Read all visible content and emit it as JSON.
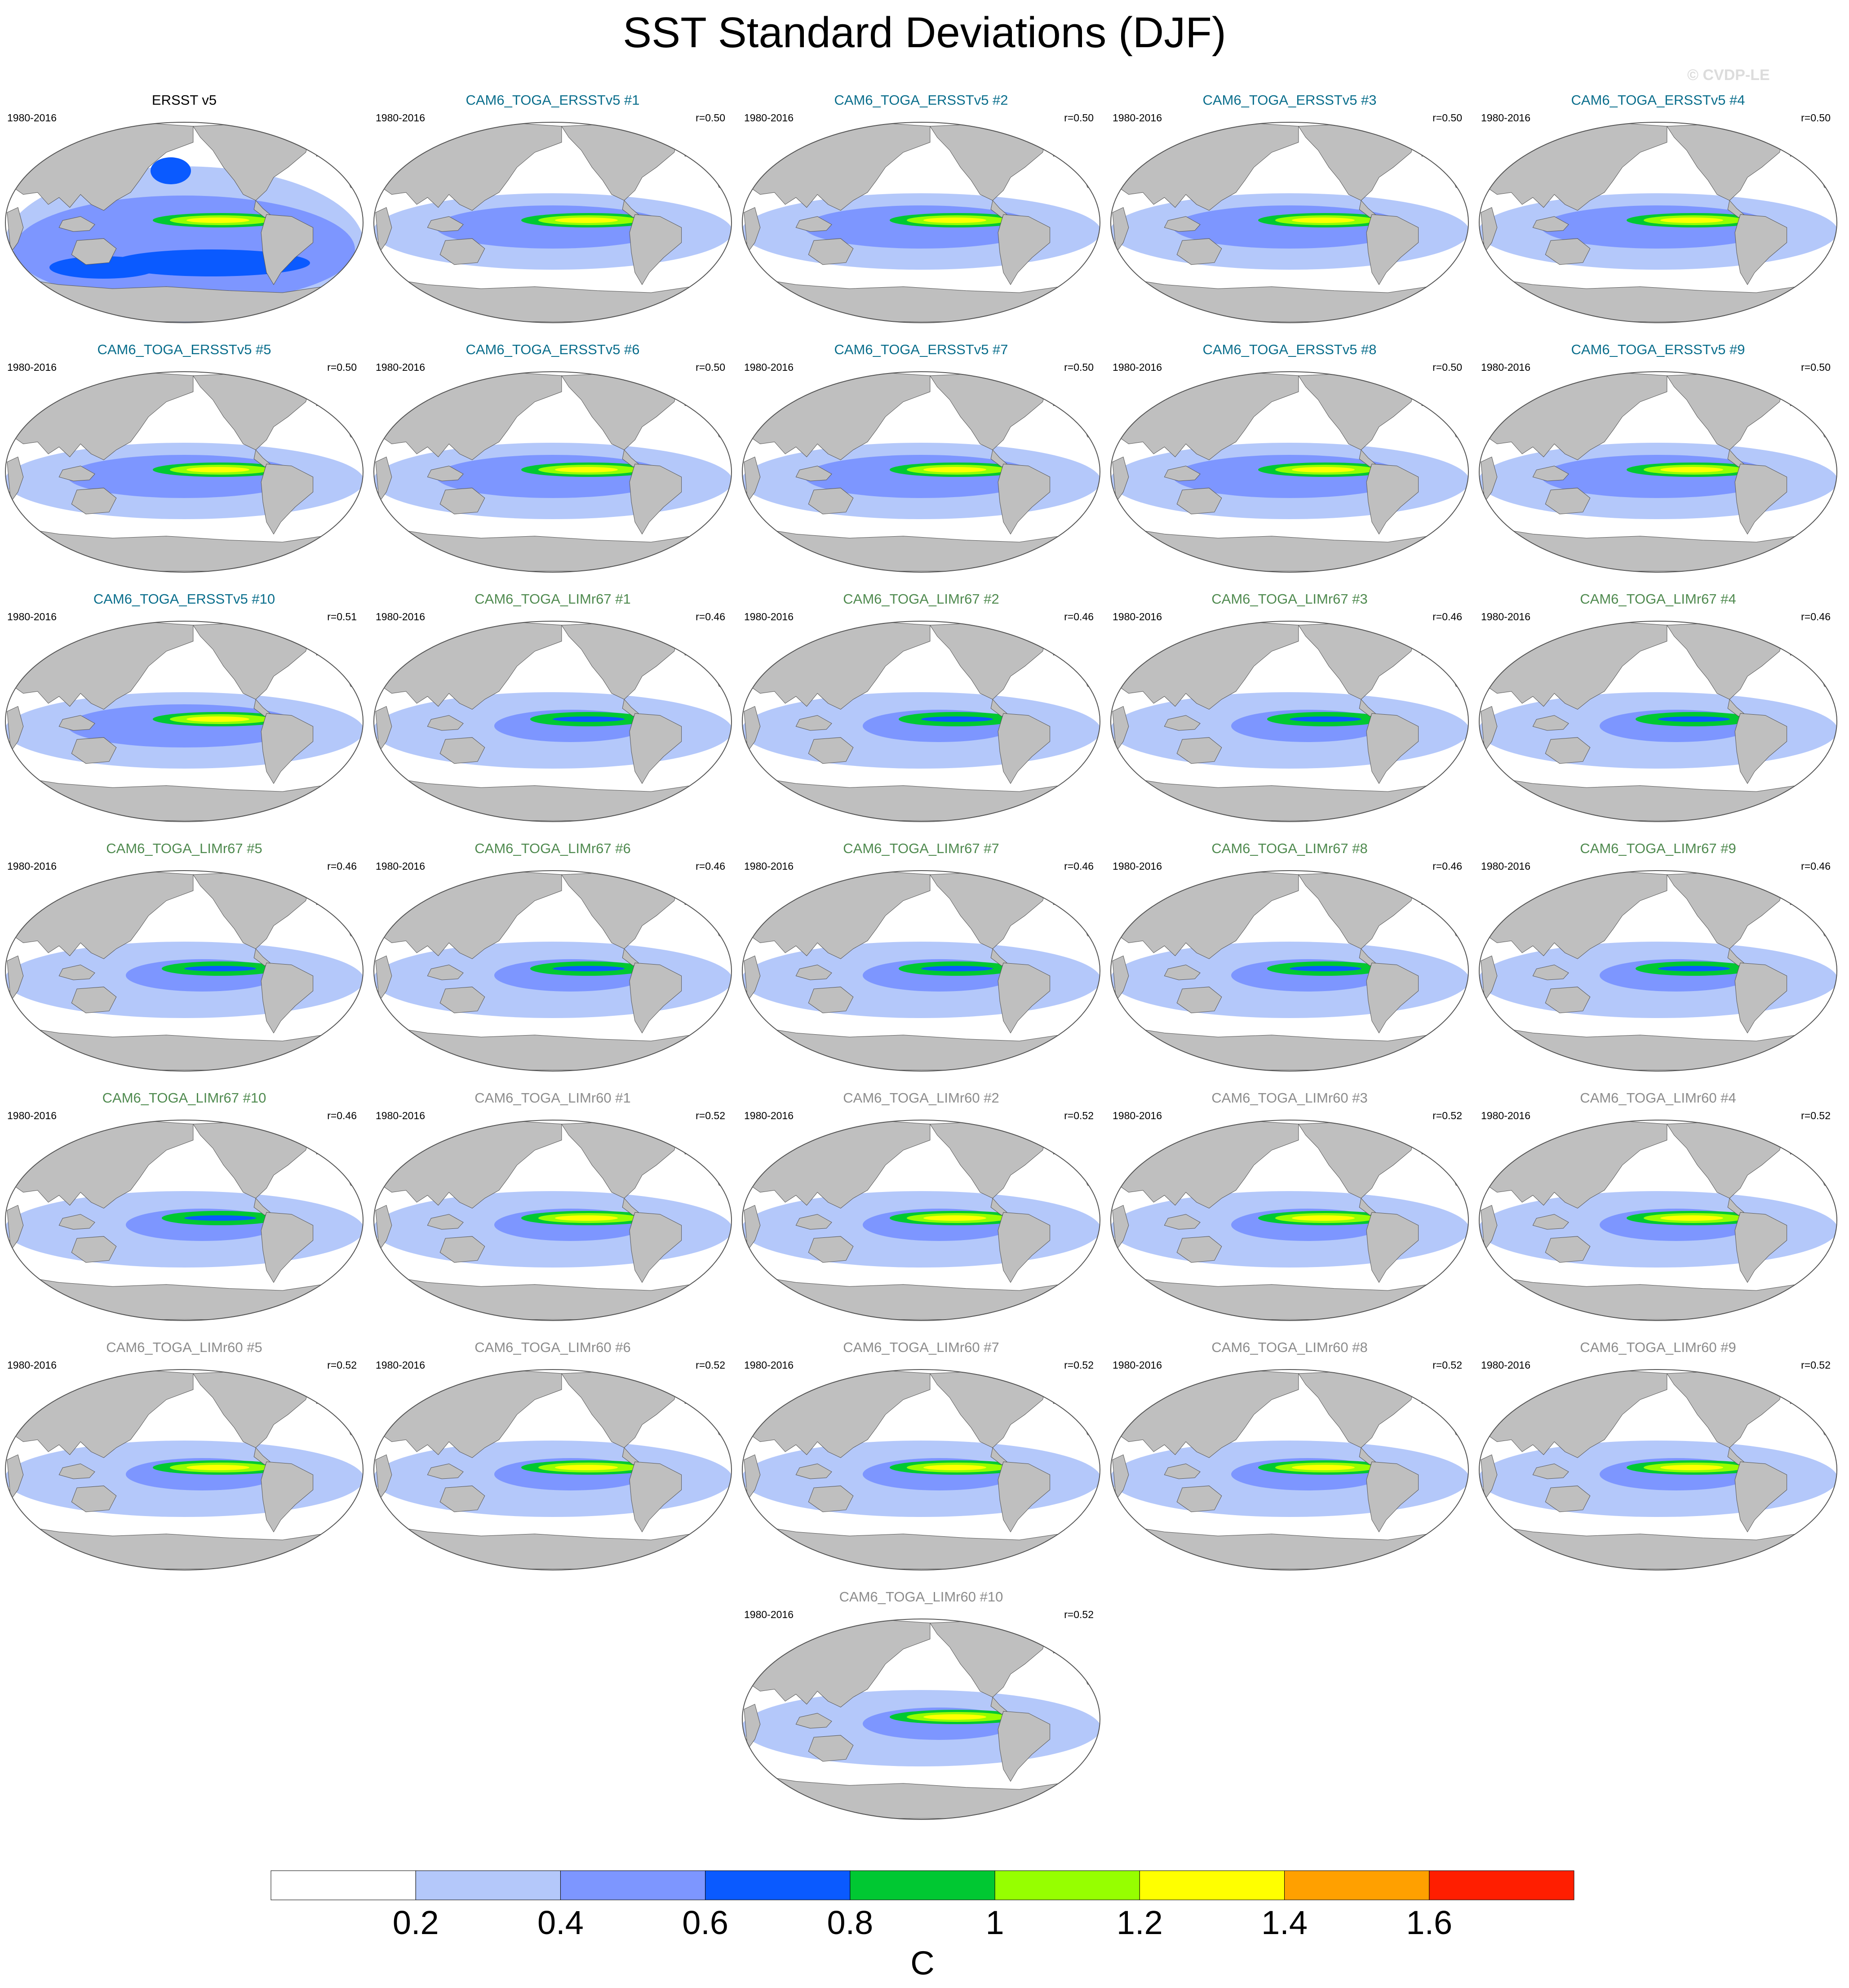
{
  "title": "SST Standard Deviations (DJF)",
  "watermark": "© CVDP-LE",
  "period": "1980-2016",
  "colors": {
    "land": "#bfbfbf",
    "ersst_title": "#000000",
    "ersstv5_group": "#0a6e8c",
    "limr67_group": "#4f8a4f",
    "limr60_group": "#8c8c8c"
  },
  "panels": [
    {
      "title": "ERSST v5",
      "group": "obs",
      "r": ""
    },
    {
      "title": "CAM6_TOGA_ERSSTv5 #1",
      "group": "ersstv5",
      "r": "r=0.50"
    },
    {
      "title": "CAM6_TOGA_ERSSTv5 #2",
      "group": "ersstv5",
      "r": "r=0.50"
    },
    {
      "title": "CAM6_TOGA_ERSSTv5 #3",
      "group": "ersstv5",
      "r": "r=0.50"
    },
    {
      "title": "CAM6_TOGA_ERSSTv5 #4",
      "group": "ersstv5",
      "r": "r=0.50"
    },
    {
      "title": "CAM6_TOGA_ERSSTv5 #5",
      "group": "ersstv5",
      "r": "r=0.50"
    },
    {
      "title": "CAM6_TOGA_ERSSTv5 #6",
      "group": "ersstv5",
      "r": "r=0.50"
    },
    {
      "title": "CAM6_TOGA_ERSSTv5 #7",
      "group": "ersstv5",
      "r": "r=0.50"
    },
    {
      "title": "CAM6_TOGA_ERSSTv5 #8",
      "group": "ersstv5",
      "r": "r=0.50"
    },
    {
      "title": "CAM6_TOGA_ERSSTv5 #9",
      "group": "ersstv5",
      "r": "r=0.50"
    },
    {
      "title": "CAM6_TOGA_ERSSTv5 #10",
      "group": "ersstv5",
      "r": "r=0.51"
    },
    {
      "title": "CAM6_TOGA_LIMr67 #1",
      "group": "limr67",
      "r": "r=0.46"
    },
    {
      "title": "CAM6_TOGA_LIMr67 #2",
      "group": "limr67",
      "r": "r=0.46"
    },
    {
      "title": "CAM6_TOGA_LIMr67 #3",
      "group": "limr67",
      "r": "r=0.46"
    },
    {
      "title": "CAM6_TOGA_LIMr67 #4",
      "group": "limr67",
      "r": "r=0.46"
    },
    {
      "title": "CAM6_TOGA_LIMr67 #5",
      "group": "limr67",
      "r": "r=0.46"
    },
    {
      "title": "CAM6_TOGA_LIMr67 #6",
      "group": "limr67",
      "r": "r=0.46"
    },
    {
      "title": "CAM6_TOGA_LIMr67 #7",
      "group": "limr67",
      "r": "r=0.46"
    },
    {
      "title": "CAM6_TOGA_LIMr67 #8",
      "group": "limr67",
      "r": "r=0.46"
    },
    {
      "title": "CAM6_TOGA_LIMr67 #9",
      "group": "limr67",
      "r": "r=0.46"
    },
    {
      "title": "CAM6_TOGA_LIMr67 #10",
      "group": "limr67",
      "r": "r=0.46"
    },
    {
      "title": "CAM6_TOGA_LIMr60 #1",
      "group": "limr60",
      "r": "r=0.52"
    },
    {
      "title": "CAM6_TOGA_LIMr60 #2",
      "group": "limr60",
      "r": "r=0.52"
    },
    {
      "title": "CAM6_TOGA_LIMr60 #3",
      "group": "limr60",
      "r": "r=0.52"
    },
    {
      "title": "CAM6_TOGA_LIMr60 #4",
      "group": "limr60",
      "r": "r=0.52"
    },
    {
      "title": "CAM6_TOGA_LIMr60 #5",
      "group": "limr60",
      "r": "r=0.52"
    },
    {
      "title": "CAM6_TOGA_LIMr60 #6",
      "group": "limr60",
      "r": "r=0.52"
    },
    {
      "title": "CAM6_TOGA_LIMr60 #7",
      "group": "limr60",
      "r": "r=0.52"
    },
    {
      "title": "CAM6_TOGA_LIMr60 #8",
      "group": "limr60",
      "r": "r=0.52"
    },
    {
      "title": "CAM6_TOGA_LIMr60 #9",
      "group": "limr60",
      "r": "r=0.52"
    },
    {
      "title": "CAM6_TOGA_LIMr60 #10",
      "group": "limr60",
      "r": "r=0.52"
    }
  ],
  "colorbar": {
    "unit": "C",
    "levels": [
      0.2,
      0.4,
      0.6,
      0.8,
      1.0,
      1.2,
      1.4,
      1.6
    ],
    "tick_labels": [
      "0.2",
      "0.4",
      "0.6",
      "0.8",
      "1",
      "1.2",
      "1.4",
      "1.6"
    ],
    "colors": [
      "#ffffff",
      "#b4c8fa",
      "#7d96ff",
      "#0a5aff",
      "#00c832",
      "#96ff00",
      "#ffff00",
      "#ffa000",
      "#ff1e00"
    ]
  }
}
